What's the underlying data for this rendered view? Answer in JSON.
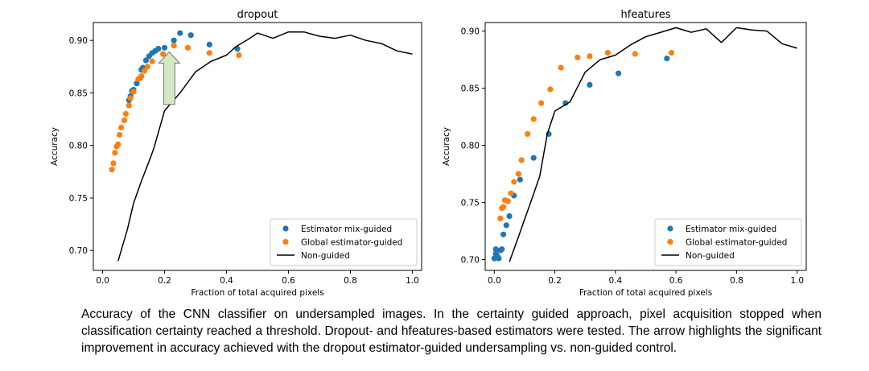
{
  "chart_data": [
    {
      "type": "scatter",
      "title": "dropout",
      "xlabel": "Fraction of total acquired pixels",
      "ylabel": "Accuracy",
      "xlim": [
        -0.03,
        1.03
      ],
      "ylim": [
        0.681,
        0.917
      ],
      "xticks": [
        "0.0",
        "0.2",
        "0.4",
        "0.6",
        "0.8",
        "1.0"
      ],
      "yticks": [
        "0.70",
        "0.75",
        "0.80",
        "0.85",
        "0.90"
      ],
      "legend_position": "lower-right",
      "series": [
        {
          "name": "Estimator mix-guided",
          "kind": "scatter",
          "color": "#1f77b4",
          "points": [
            [
              0.085,
              0.843
            ],
            [
              0.09,
              0.847
            ],
            [
              0.095,
              0.852
            ],
            [
              0.1,
              0.853
            ],
            [
              0.11,
              0.859
            ],
            [
              0.12,
              0.864
            ],
            [
              0.125,
              0.872
            ],
            [
              0.13,
              0.874
            ],
            [
              0.14,
              0.881
            ],
            [
              0.15,
              0.885
            ],
            [
              0.16,
              0.888
            ],
            [
              0.17,
              0.89
            ],
            [
              0.18,
              0.892
            ],
            [
              0.2,
              0.893
            ],
            [
              0.23,
              0.9
            ],
            [
              0.25,
              0.907
            ],
            [
              0.285,
              0.905
            ],
            [
              0.345,
              0.896
            ],
            [
              0.435,
              0.892
            ]
          ]
        },
        {
          "name": "Global estimator-guided",
          "kind": "scatter",
          "color": "#ff7f0e",
          "points": [
            [
              0.03,
              0.777
            ],
            [
              0.035,
              0.783
            ],
            [
              0.04,
              0.793
            ],
            [
              0.045,
              0.799
            ],
            [
              0.05,
              0.801
            ],
            [
              0.055,
              0.81
            ],
            [
              0.06,
              0.817
            ],
            [
              0.07,
              0.824
            ],
            [
              0.075,
              0.83
            ],
            [
              0.085,
              0.838
            ],
            [
              0.09,
              0.845
            ],
            [
              0.1,
              0.851
            ],
            [
              0.115,
              0.863
            ],
            [
              0.125,
              0.866
            ],
            [
              0.135,
              0.871
            ],
            [
              0.145,
              0.875
            ],
            [
              0.16,
              0.88
            ],
            [
              0.195,
              0.887
            ],
            [
              0.23,
              0.895
            ],
            [
              0.275,
              0.893
            ],
            [
              0.345,
              0.888
            ],
            [
              0.44,
              0.886
            ]
          ]
        },
        {
          "name": "Non-guided",
          "kind": "line",
          "color": "#000000",
          "points": [
            [
              0.05,
              0.69
            ],
            [
              0.08,
              0.72
            ],
            [
              0.1,
              0.745
            ],
            [
              0.125,
              0.766
            ],
            [
              0.15,
              0.785
            ],
            [
              0.165,
              0.797
            ],
            [
              0.2,
              0.833
            ],
            [
              0.25,
              0.85
            ],
            [
              0.3,
              0.87
            ],
            [
              0.35,
              0.88
            ],
            [
              0.4,
              0.886
            ],
            [
              0.43,
              0.894
            ],
            [
              0.47,
              0.901
            ],
            [
              0.5,
              0.907
            ],
            [
              0.55,
              0.902
            ],
            [
              0.6,
              0.908
            ],
            [
              0.65,
              0.908
            ],
            [
              0.7,
              0.904
            ],
            [
              0.75,
              0.902
            ],
            [
              0.8,
              0.905
            ],
            [
              0.85,
              0.9
            ],
            [
              0.9,
              0.897
            ],
            [
              0.95,
              0.89
            ],
            [
              1.0,
              0.887
            ]
          ]
        }
      ],
      "annotation": {
        "kind": "arrow",
        "color": "#d6e7c4",
        "x": 0.215,
        "y_from": 0.839,
        "y_to": 0.889
      }
    },
    {
      "type": "scatter",
      "title": "hfeatures",
      "xlabel": "Fraction of total acquired pixels",
      "ylabel": "Accuracy",
      "xlim": [
        -0.03,
        1.03
      ],
      "ylim": [
        0.6905,
        0.9075
      ],
      "xticks": [
        "0.0",
        "0.2",
        "0.4",
        "0.6",
        "0.8",
        "1.0"
      ],
      "yticks": [
        "0.70",
        "0.75",
        "0.80",
        "0.85",
        "0.90"
      ],
      "legend_position": "lower-right",
      "series": [
        {
          "name": "Estimator mix-guided",
          "kind": "scatter",
          "color": "#1f77b4",
          "points": [
            [
              0.0,
              0.701
            ],
            [
              0.005,
              0.705
            ],
            [
              0.01,
              0.703
            ],
            [
              0.015,
              0.701
            ],
            [
              0.02,
              0.708
            ],
            [
              0.025,
              0.709
            ],
            [
              0.005,
              0.709
            ],
            [
              0.03,
              0.722
            ],
            [
              0.04,
              0.73
            ],
            [
              0.05,
              0.738
            ],
            [
              0.065,
              0.756
            ],
            [
              0.085,
              0.77
            ],
            [
              0.13,
              0.789
            ],
            [
              0.18,
              0.81
            ],
            [
              0.235,
              0.837
            ],
            [
              0.315,
              0.853
            ],
            [
              0.41,
              0.863
            ],
            [
              0.57,
              0.876
            ]
          ]
        },
        {
          "name": "Global estimator-guided",
          "kind": "scatter",
          "color": "#ff7f0e",
          "points": [
            [
              0.02,
              0.736
            ],
            [
              0.025,
              0.745
            ],
            [
              0.03,
              0.746
            ],
            [
              0.035,
              0.752
            ],
            [
              0.045,
              0.751
            ],
            [
              0.055,
              0.758
            ],
            [
              0.065,
              0.768
            ],
            [
              0.08,
              0.775
            ],
            [
              0.09,
              0.787
            ],
            [
              0.11,
              0.81
            ],
            [
              0.13,
              0.823
            ],
            [
              0.155,
              0.837
            ],
            [
              0.185,
              0.849
            ],
            [
              0.22,
              0.868
            ],
            [
              0.275,
              0.877
            ],
            [
              0.315,
              0.878
            ],
            [
              0.375,
              0.881
            ],
            [
              0.465,
              0.88
            ],
            [
              0.585,
              0.881
            ]
          ]
        },
        {
          "name": "Non-guided",
          "kind": "line",
          "color": "#000000",
          "points": [
            [
              0.05,
              0.698
            ],
            [
              0.08,
              0.72
            ],
            [
              0.1,
              0.735
            ],
            [
              0.12,
              0.75
            ],
            [
              0.15,
              0.773
            ],
            [
              0.175,
              0.81
            ],
            [
              0.2,
              0.83
            ],
            [
              0.25,
              0.838
            ],
            [
              0.3,
              0.864
            ],
            [
              0.35,
              0.875
            ],
            [
              0.4,
              0.879
            ],
            [
              0.45,
              0.888
            ],
            [
              0.5,
              0.895
            ],
            [
              0.55,
              0.899
            ],
            [
              0.6,
              0.903
            ],
            [
              0.65,
              0.899
            ],
            [
              0.7,
              0.902
            ],
            [
              0.75,
              0.89
            ],
            [
              0.8,
              0.903
            ],
            [
              0.85,
              0.901
            ],
            [
              0.9,
              0.9
            ],
            [
              0.95,
              0.889
            ],
            [
              1.0,
              0.885
            ]
          ]
        }
      ]
    }
  ],
  "caption": "Accuracy of the CNN classifier on undersampled images. In the certainty guided approach, pixel acquisition stopped when classification certainty reached a threshold. Dropout- and hfeatures-based estimators were tested. The arrow highlights the significant improvement in accuracy achieved with the dropout estimator-guided undersampling vs. non-guided control."
}
